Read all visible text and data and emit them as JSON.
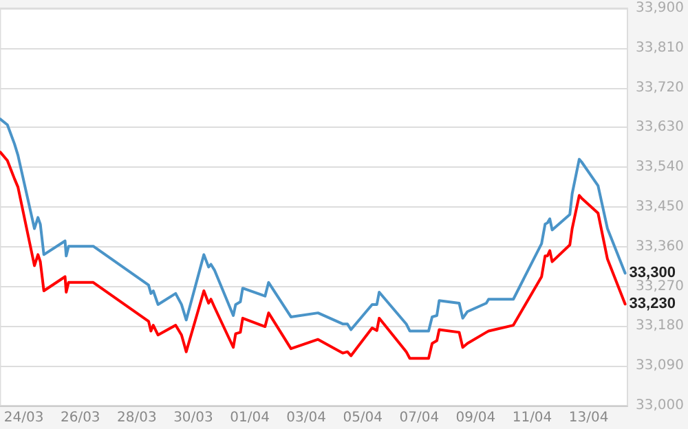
{
  "chart_data": {
    "type": "line",
    "x": [
      "--03-23T04:00",
      "--03-23T10:00",
      "--03-23T16:00",
      "--03-23T19:00",
      "--03-24T09:00",
      "--03-24T12:00",
      "--03-24T14:00",
      "--03-24T17:00",
      "--03-25T11:00",
      "--03-25T12:00",
      "--03-25T14:00",
      "--03-26T11:00",
      "--03-28T10:00",
      "--03-28T12:00",
      "--03-28T14:00",
      "--03-28T18:00",
      "--03-29T09:00",
      "--03-29T14:00",
      "--03-29T18:00",
      "--03-30T09:00",
      "--03-30T13:00",
      "--03-30T15:00",
      "--03-30T18:00",
      "--03-31T10:00",
      "--03-31T12:00",
      "--03-31T16:00",
      "--03-31T18:00",
      "--04-01T13:00",
      "--04-01T16:00",
      "--04-02T11:00",
      "--04-03T10:00",
      "--04-04T07:00",
      "--04-04T11:00",
      "--04-04T14:00",
      "--04-05T08:00",
      "--04-05T12:00",
      "--04-05T14:00",
      "--04-06T13:00",
      "--04-06T16:00",
      "--04-07T08:00",
      "--04-07T11:00",
      "--04-07T15:00",
      "--04-07T17:00",
      "--04-08T10:00",
      "--04-08T13:00",
      "--04-08T17:00",
      "--04-09T09:00",
      "--04-09T11:00",
      "--04-10T08:00",
      "--04-11T08:00",
      "--04-11T11:00",
      "--04-11T13:00",
      "--04-11T15:00",
      "--04-11T17:00",
      "--04-12T08:00",
      "--04-12T10:00",
      "--04-12T16:00",
      "--04-12T18:00",
      "--04-13T08:00",
      "--04-13T16:00",
      "--04-14T07:00"
    ],
    "series": [
      {
        "color": "#4a94c8",
        "values": [
          33649,
          33636,
          33593,
          33567,
          33401,
          33426,
          33411,
          33342,
          33373,
          33339,
          33361,
          33361,
          33273,
          33254,
          33260,
          33229,
          33254,
          33229,
          33194,
          33342,
          33314,
          33320,
          33307,
          33204,
          33229,
          33235,
          33266,
          33248,
          33279,
          33201,
          33210,
          33185,
          33185,
          33172,
          33229,
          33229,
          33257,
          33185,
          33169,
          33169,
          33201,
          33204,
          33238,
          33232,
          33198,
          33213,
          33232,
          33241,
          33241,
          33367,
          33411,
          33414,
          33423,
          33398,
          33433,
          33480,
          33558,
          33552,
          33498,
          33401,
          33300
        ],
        "value_labels": [
          null,
          null,
          null,
          null,
          null,
          null,
          null,
          null,
          null,
          null,
          null,
          null,
          null,
          null,
          null,
          null,
          null,
          null,
          null,
          null,
          null,
          null,
          null,
          null,
          null,
          null,
          null,
          null,
          null,
          null,
          null,
          null,
          null,
          null,
          null,
          null,
          null,
          null,
          null,
          null,
          null,
          null,
          null,
          null,
          null,
          null,
          null,
          null,
          null,
          null,
          null,
          null,
          null,
          null,
          null,
          null,
          null,
          null,
          null,
          null,
          "33,300"
        ]
      },
      {
        "color": "#ff0000",
        "values": [
          33574,
          33555,
          33514,
          33495,
          33317,
          33342,
          33326,
          33260,
          33292,
          33257,
          33279,
          33279,
          33191,
          33169,
          33182,
          33160,
          33182,
          33160,
          33122,
          33260,
          33232,
          33241,
          33223,
          33132,
          33163,
          33166,
          33198,
          33179,
          33210,
          33129,
          33150,
          33119,
          33122,
          33113,
          33176,
          33170,
          33198,
          33122,
          33107,
          33107,
          33141,
          33147,
          33172,
          33166,
          33132,
          33141,
          33166,
          33169,
          33182,
          33292,
          33339,
          33339,
          33351,
          33326,
          33364,
          33401,
          33476,
          33470,
          33436,
          33332,
          33230
        ],
        "value_labels": [
          null,
          null,
          null,
          null,
          null,
          null,
          null,
          null,
          null,
          null,
          null,
          null,
          null,
          null,
          null,
          null,
          null,
          null,
          null,
          null,
          null,
          null,
          null,
          null,
          null,
          null,
          null,
          null,
          null,
          null,
          null,
          null,
          null,
          null,
          null,
          null,
          null,
          null,
          null,
          null,
          null,
          null,
          null,
          null,
          null,
          null,
          null,
          null,
          null,
          null,
          null,
          null,
          null,
          null,
          null,
          null,
          null,
          null,
          null,
          null,
          "33,230"
        ]
      }
    ],
    "xlim": [
      "--03-23T04:00",
      "--04-14T09:00"
    ],
    "xticks": [
      {
        "value": "--03-24",
        "label": "24/03"
      },
      {
        "value": "--03-26",
        "label": "26/03"
      },
      {
        "value": "--03-28",
        "label": "28/03"
      },
      {
        "value": "--03-30",
        "label": "30/03"
      },
      {
        "value": "--04-01",
        "label": "01/04"
      },
      {
        "value": "--04-03",
        "label": "03/04"
      },
      {
        "value": "--04-05",
        "label": "05/04"
      },
      {
        "value": "--04-07",
        "label": "07/04"
      },
      {
        "value": "--04-09",
        "label": "09/04"
      },
      {
        "value": "--04-11",
        "label": "11/04"
      },
      {
        "value": "--04-13",
        "label": "13/04"
      }
    ],
    "ylim": [
      33000,
      33900
    ],
    "yticks": [
      {
        "value": 33000,
        "label": "33,000"
      },
      {
        "value": 33090,
        "label": "33,090"
      },
      {
        "value": 33180,
        "label": "33,180"
      },
      {
        "value": 33270,
        "label": "33,270"
      },
      {
        "value": 33360,
        "label": "33,360"
      },
      {
        "value": 33450,
        "label": "33,450"
      },
      {
        "value": 33540,
        "label": "33,540"
      },
      {
        "value": 33630,
        "label": "33,630"
      },
      {
        "value": 33720,
        "label": "33,720"
      },
      {
        "value": 33810,
        "label": "33,810"
      },
      {
        "value": 33900,
        "label": "33,900"
      }
    ],
    "grid": "y",
    "marker": "none",
    "line_style": "solid"
  }
}
